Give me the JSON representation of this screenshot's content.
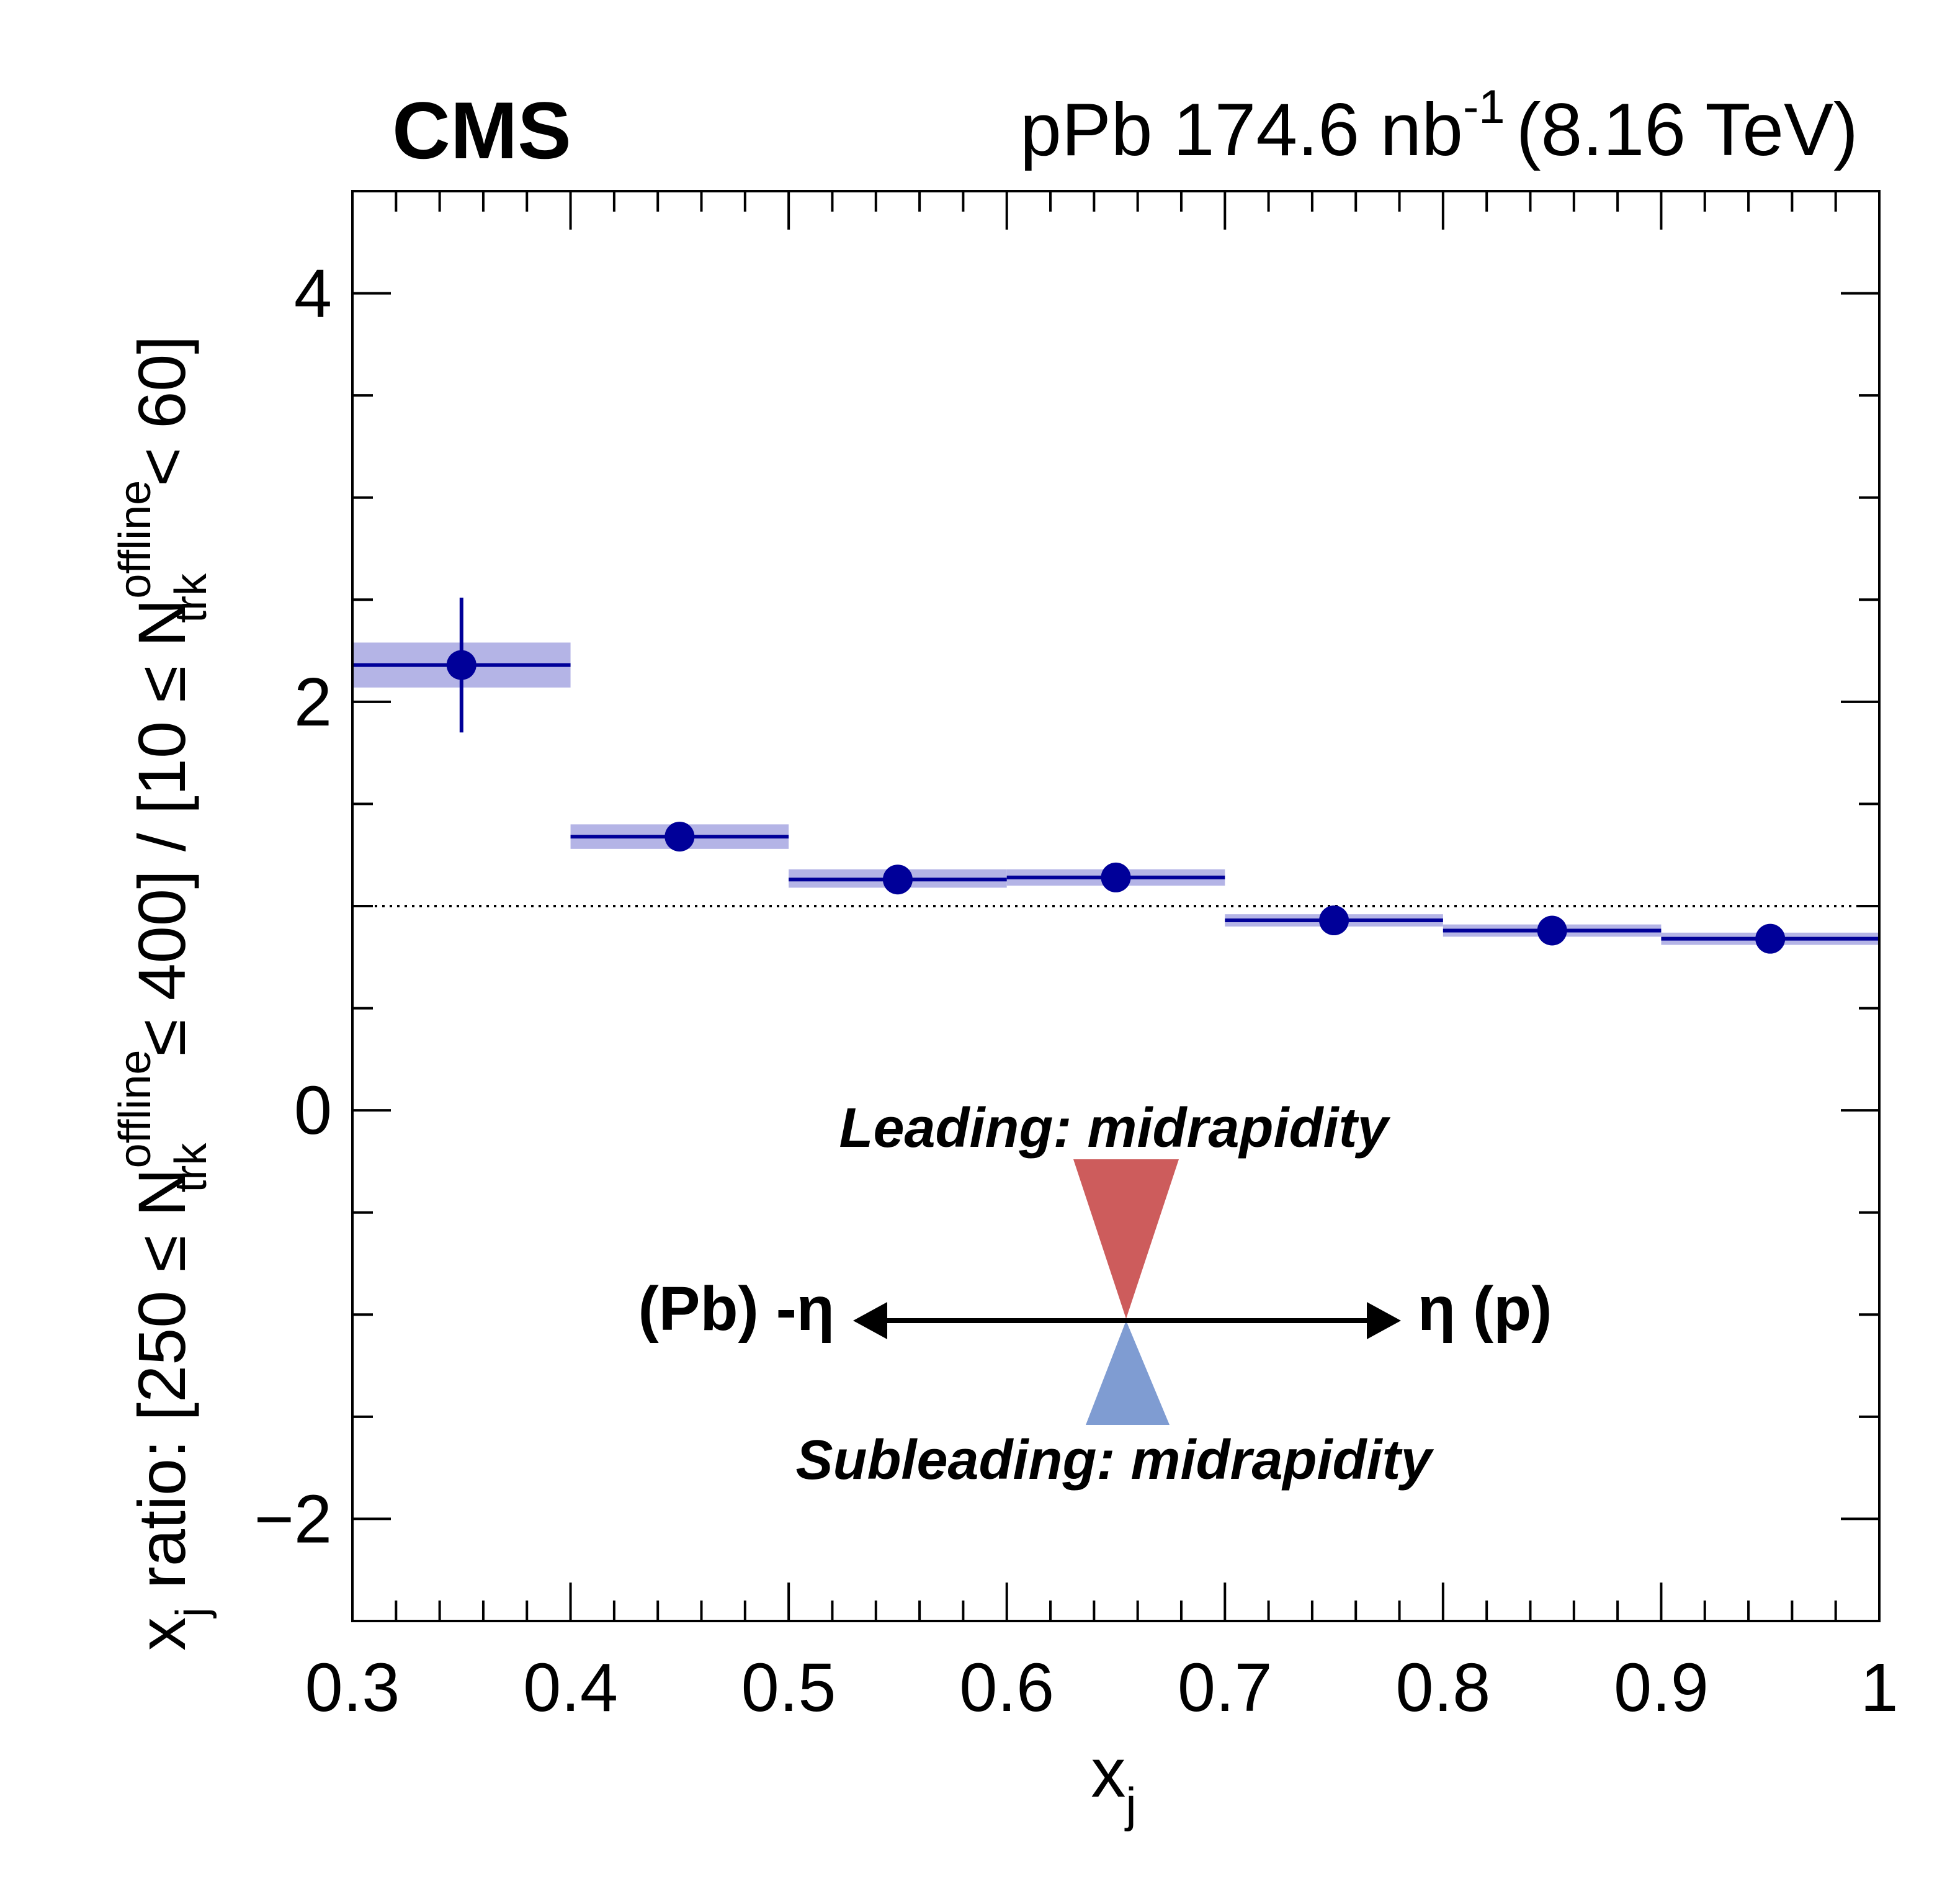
{
  "header": {
    "experiment": "CMS",
    "lumi_prefix": "pPb 174.6 nb",
    "lumi_exponent": "-1",
    "energy": "(8.16 TeV)"
  },
  "chart_data": {
    "type": "scatter",
    "xlabel": {
      "main": "x",
      "sub": "j"
    },
    "ylabel": {
      "a": "x",
      "a_sub": "j",
      "b": " ratio: [250 ≤ N",
      "b_sup": "offline",
      "b_sub": "trk",
      "c": " ≤ 400] / [10 ≤ N",
      "c_sup": "offline",
      "c_sub": "trk",
      "d": " < 60]"
    },
    "xlim": [
      0.3,
      1.0
    ],
    "ylim": [
      -2.5,
      4.5
    ],
    "x_ticks": [
      {
        "value": 0.3,
        "label": "0.3"
      },
      {
        "value": 0.4,
        "label": "0.4"
      },
      {
        "value": 0.5,
        "label": "0.5"
      },
      {
        "value": 0.6,
        "label": "0.6"
      },
      {
        "value": 0.7,
        "label": "0.7"
      },
      {
        "value": 0.8,
        "label": "0.8"
      },
      {
        "value": 0.9,
        "label": "0.9"
      },
      {
        "value": 1.0,
        "label": "1"
      }
    ],
    "y_ticks": [
      {
        "value": -2,
        "label": "−2"
      },
      {
        "value": 0,
        "label": "0"
      },
      {
        "value": 2,
        "label": "2"
      },
      {
        "value": 4,
        "label": "4"
      }
    ],
    "reference_line": 1.0,
    "points": [
      {
        "x": 0.35,
        "x_low": 0.3,
        "x_high": 0.4,
        "y": 2.18,
        "stat_err": 0.33,
        "syst_low": 2.07,
        "syst_high": 2.29
      },
      {
        "x": 0.45,
        "x_low": 0.4,
        "x_high": 0.5,
        "y": 1.34,
        "stat_err": 0.04,
        "syst_low": 1.28,
        "syst_high": 1.4
      },
      {
        "x": 0.55,
        "x_low": 0.5,
        "x_high": 0.6,
        "y": 1.13,
        "stat_err": 0.03,
        "syst_low": 1.09,
        "syst_high": 1.18
      },
      {
        "x": 0.65,
        "x_low": 0.6,
        "x_high": 0.7,
        "y": 1.14,
        "stat_err": 0.03,
        "syst_low": 1.1,
        "syst_high": 1.18
      },
      {
        "x": 0.75,
        "x_low": 0.7,
        "x_high": 0.8,
        "y": 0.93,
        "stat_err": 0.02,
        "syst_low": 0.9,
        "syst_high": 0.96
      },
      {
        "x": 0.85,
        "x_low": 0.8,
        "x_high": 0.9,
        "y": 0.88,
        "stat_err": 0.02,
        "syst_low": 0.85,
        "syst_high": 0.91
      },
      {
        "x": 0.95,
        "x_low": 0.9,
        "x_high": 1.0,
        "y": 0.84,
        "stat_err": 0.02,
        "syst_low": 0.81,
        "syst_high": 0.87
      }
    ],
    "colors": {
      "marker": "#000099",
      "syst_band": "#b4b4e6",
      "leading": "#cd5c5c",
      "subleading": "#7f9cd2"
    },
    "annotations": {
      "leading": "Leading: midrapidity",
      "subleading": "Subleading: midrapidity",
      "left_axis": "(Pb) -η",
      "right_axis": "η (p)"
    }
  }
}
